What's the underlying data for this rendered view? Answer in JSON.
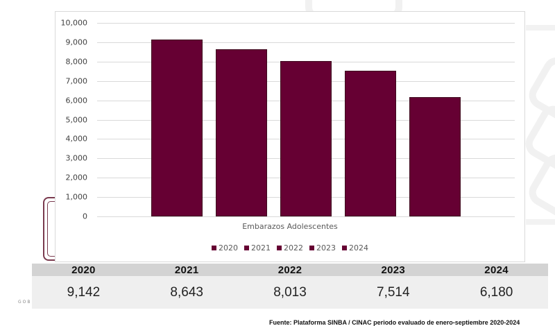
{
  "chart_data": {
    "type": "bar",
    "title": "",
    "xlabel": "Embarazos Adolescentes",
    "ylabel": "",
    "categories": [
      "Embarazos Adolescentes"
    ],
    "series": [
      {
        "name": "2020",
        "values": [
          9142
        ]
      },
      {
        "name": "2021",
        "values": [
          8643
        ]
      },
      {
        "name": "2022",
        "values": [
          8013
        ]
      },
      {
        "name": "2023",
        "values": [
          7514
        ]
      },
      {
        "name": "2024",
        "values": [
          6180
        ]
      }
    ],
    "ylim": [
      0,
      10000
    ],
    "yticks": [
      "0",
      "1,000",
      "2,000",
      "3,000",
      "4,000",
      "5,000",
      "6,000",
      "7,000",
      "8,000",
      "9,000",
      "10,000"
    ],
    "grid": true,
    "legend_position": "bottom",
    "bar_color": "#660033"
  },
  "legend": [
    "2020",
    "2021",
    "2022",
    "2023",
    "2024"
  ],
  "table": {
    "headers": [
      "2020",
      "2021",
      "2022",
      "2023",
      "2024"
    ],
    "values": [
      "9,142",
      "8,643",
      "8,013",
      "7,514",
      "6,180"
    ]
  },
  "footer": {
    "gob_text": "GOB",
    "source": "Fuente: Plataforma SINBA / CINAC periodo evaluado de enero-septiembre 2020-2024"
  }
}
